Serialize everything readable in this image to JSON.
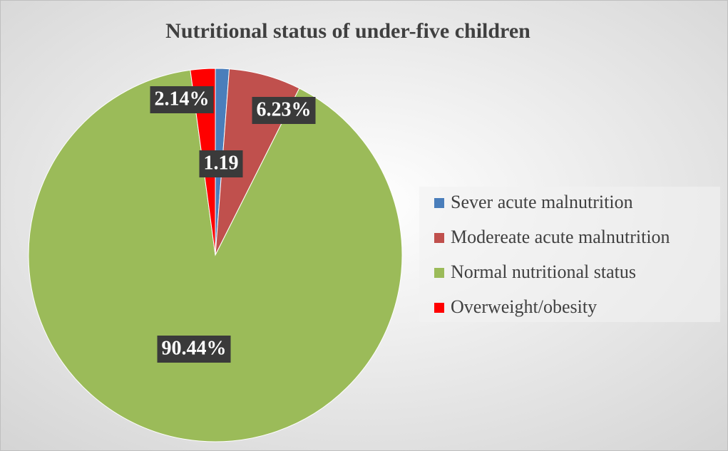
{
  "chart_data": {
    "type": "pie",
    "title": "Nutritional status of under-five children",
    "categories": [
      "Sever acute malnutrition",
      "Modereate acute malnutrition",
      "Normal nutritional status",
      "Overweight/obesity"
    ],
    "values": [
      1.19,
      6.23,
      90.44,
      2.14
    ],
    "value_labels": [
      "1.19",
      "6.23%",
      "90.44%",
      "2.14%"
    ],
    "colors": [
      "#4a7ebb",
      "#c0504d",
      "#9bbb59",
      "#ff0000"
    ],
    "legend": "right"
  }
}
